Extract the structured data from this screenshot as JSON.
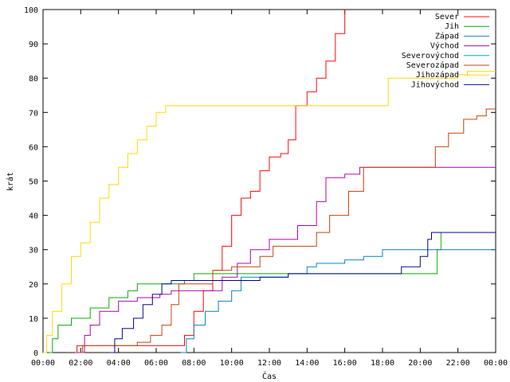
{
  "chart_data": {
    "type": "line",
    "title": "",
    "xlabel": "Čas",
    "ylabel": "krát",
    "xlim_hours": [
      0,
      24
    ],
    "ylim": [
      0,
      100
    ],
    "x_tick_labels": [
      "00:00",
      "02:00",
      "04:00",
      "06:00",
      "08:00",
      "10:00",
      "12:00",
      "14:00",
      "16:00",
      "18:00",
      "20:00",
      "22:00",
      "00:00"
    ],
    "y_ticks": [
      0,
      10,
      20,
      30,
      40,
      50,
      60,
      70,
      80,
      90,
      100
    ],
    "grid": false,
    "legend_position": "top-right",
    "series": [
      {
        "name": "Sever",
        "color": "#ff0000",
        "points": [
          [
            1.7,
            0
          ],
          [
            1.8,
            2
          ],
          [
            7.3,
            2
          ],
          [
            7.5,
            5
          ],
          [
            8.0,
            12
          ],
          [
            8.5,
            18
          ],
          [
            9.0,
            24
          ],
          [
            9.5,
            31
          ],
          [
            10.0,
            40
          ],
          [
            10.5,
            45
          ],
          [
            11.0,
            47
          ],
          [
            11.5,
            53
          ],
          [
            12.0,
            57
          ],
          [
            12.6,
            58
          ],
          [
            13.0,
            62
          ],
          [
            13.4,
            72
          ],
          [
            14.0,
            76
          ],
          [
            14.5,
            80
          ],
          [
            15.0,
            85
          ],
          [
            15.5,
            93
          ],
          [
            16.0,
            100
          ]
        ]
      },
      {
        "name": "Jih",
        "color": "#00aa00",
        "points": [
          [
            0.3,
            0
          ],
          [
            0.5,
            4
          ],
          [
            0.8,
            8
          ],
          [
            1.5,
            10
          ],
          [
            2.5,
            13
          ],
          [
            3.5,
            16
          ],
          [
            4.5,
            18
          ],
          [
            5.0,
            20
          ],
          [
            7.0,
            20
          ],
          [
            7.5,
            21
          ],
          [
            8.0,
            23
          ],
          [
            20.5,
            23
          ],
          [
            20.9,
            30
          ],
          [
            21.1,
            35
          ]
        ]
      },
      {
        "name": "Západ",
        "color": "#0080c0",
        "points": [
          [
            7.3,
            0
          ],
          [
            7.6,
            4
          ],
          [
            8.0,
            8
          ],
          [
            8.6,
            12
          ],
          [
            9.3,
            15
          ],
          [
            10.0,
            18
          ],
          [
            10.5,
            22
          ],
          [
            13.0,
            23
          ],
          [
            14.0,
            25
          ],
          [
            14.5,
            26
          ],
          [
            16.0,
            27
          ],
          [
            17.0,
            28
          ],
          [
            18.0,
            30
          ],
          [
            24.0,
            30
          ]
        ]
      },
      {
        "name": "Východ",
        "color": "#aa00aa",
        "points": [
          [
            1.8,
            0
          ],
          [
            2.2,
            5
          ],
          [
            2.5,
            8
          ],
          [
            3.0,
            12
          ],
          [
            4.0,
            15
          ],
          [
            5.0,
            16
          ],
          [
            6.2,
            17
          ],
          [
            6.8,
            18
          ],
          [
            9.5,
            22
          ],
          [
            10.3,
            26
          ],
          [
            11.0,
            30
          ],
          [
            12.0,
            33
          ],
          [
            13.5,
            37
          ],
          [
            14.5,
            44
          ],
          [
            15.0,
            51
          ],
          [
            16.0,
            52
          ],
          [
            16.8,
            54
          ],
          [
            24.0,
            54
          ]
        ]
      },
      {
        "name": "Severovýchod",
        "color": "#00a8a8",
        "points": []
      },
      {
        "name": "Severozápad",
        "color": "#c04000",
        "points": [
          [
            2.0,
            0
          ],
          [
            2.1,
            2
          ],
          [
            3.8,
            2
          ],
          [
            5.0,
            3
          ],
          [
            5.7,
            5
          ],
          [
            6.3,
            8
          ],
          [
            6.8,
            14
          ],
          [
            7.2,
            20
          ],
          [
            9.0,
            24
          ],
          [
            10.0,
            25
          ],
          [
            11.5,
            28
          ],
          [
            12.2,
            31
          ],
          [
            14.5,
            35
          ],
          [
            15.2,
            40
          ],
          [
            16.2,
            47
          ],
          [
            17.0,
            54
          ],
          [
            20.3,
            54
          ],
          [
            20.8,
            60
          ],
          [
            21.5,
            64
          ],
          [
            22.3,
            68
          ],
          [
            23.0,
            69
          ],
          [
            23.5,
            71
          ],
          [
            24.0,
            71
          ]
        ]
      },
      {
        "name": "Jihozápad",
        "color": "#ffd700",
        "points": [
          [
            0.0,
            0
          ],
          [
            0.2,
            5
          ],
          [
            0.5,
            12
          ],
          [
            1.0,
            20
          ],
          [
            1.5,
            28
          ],
          [
            2.0,
            32
          ],
          [
            2.5,
            38
          ],
          [
            3.0,
            45
          ],
          [
            3.5,
            49
          ],
          [
            4.0,
            54
          ],
          [
            4.5,
            58
          ],
          [
            5.0,
            62
          ],
          [
            5.5,
            66
          ],
          [
            6.0,
            70
          ],
          [
            6.5,
            72
          ],
          [
            18.0,
            72
          ],
          [
            18.3,
            80
          ],
          [
            22.0,
            81
          ],
          [
            22.5,
            82
          ],
          [
            24.0,
            82
          ]
        ]
      },
      {
        "name": "Jihovýchod",
        "color": "#000090",
        "points": [
          [
            3.5,
            0
          ],
          [
            3.8,
            4
          ],
          [
            4.2,
            7
          ],
          [
            4.8,
            10
          ],
          [
            5.3,
            14
          ],
          [
            5.8,
            17
          ],
          [
            6.3,
            20
          ],
          [
            6.8,
            21
          ],
          [
            9.0,
            21
          ],
          [
            10.0,
            21
          ],
          [
            11.5,
            22
          ],
          [
            13.0,
            23
          ],
          [
            18.0,
            23
          ],
          [
            19.0,
            25
          ],
          [
            20.0,
            28
          ],
          [
            20.4,
            33
          ],
          [
            20.6,
            35
          ],
          [
            24.0,
            35
          ]
        ]
      }
    ]
  }
}
